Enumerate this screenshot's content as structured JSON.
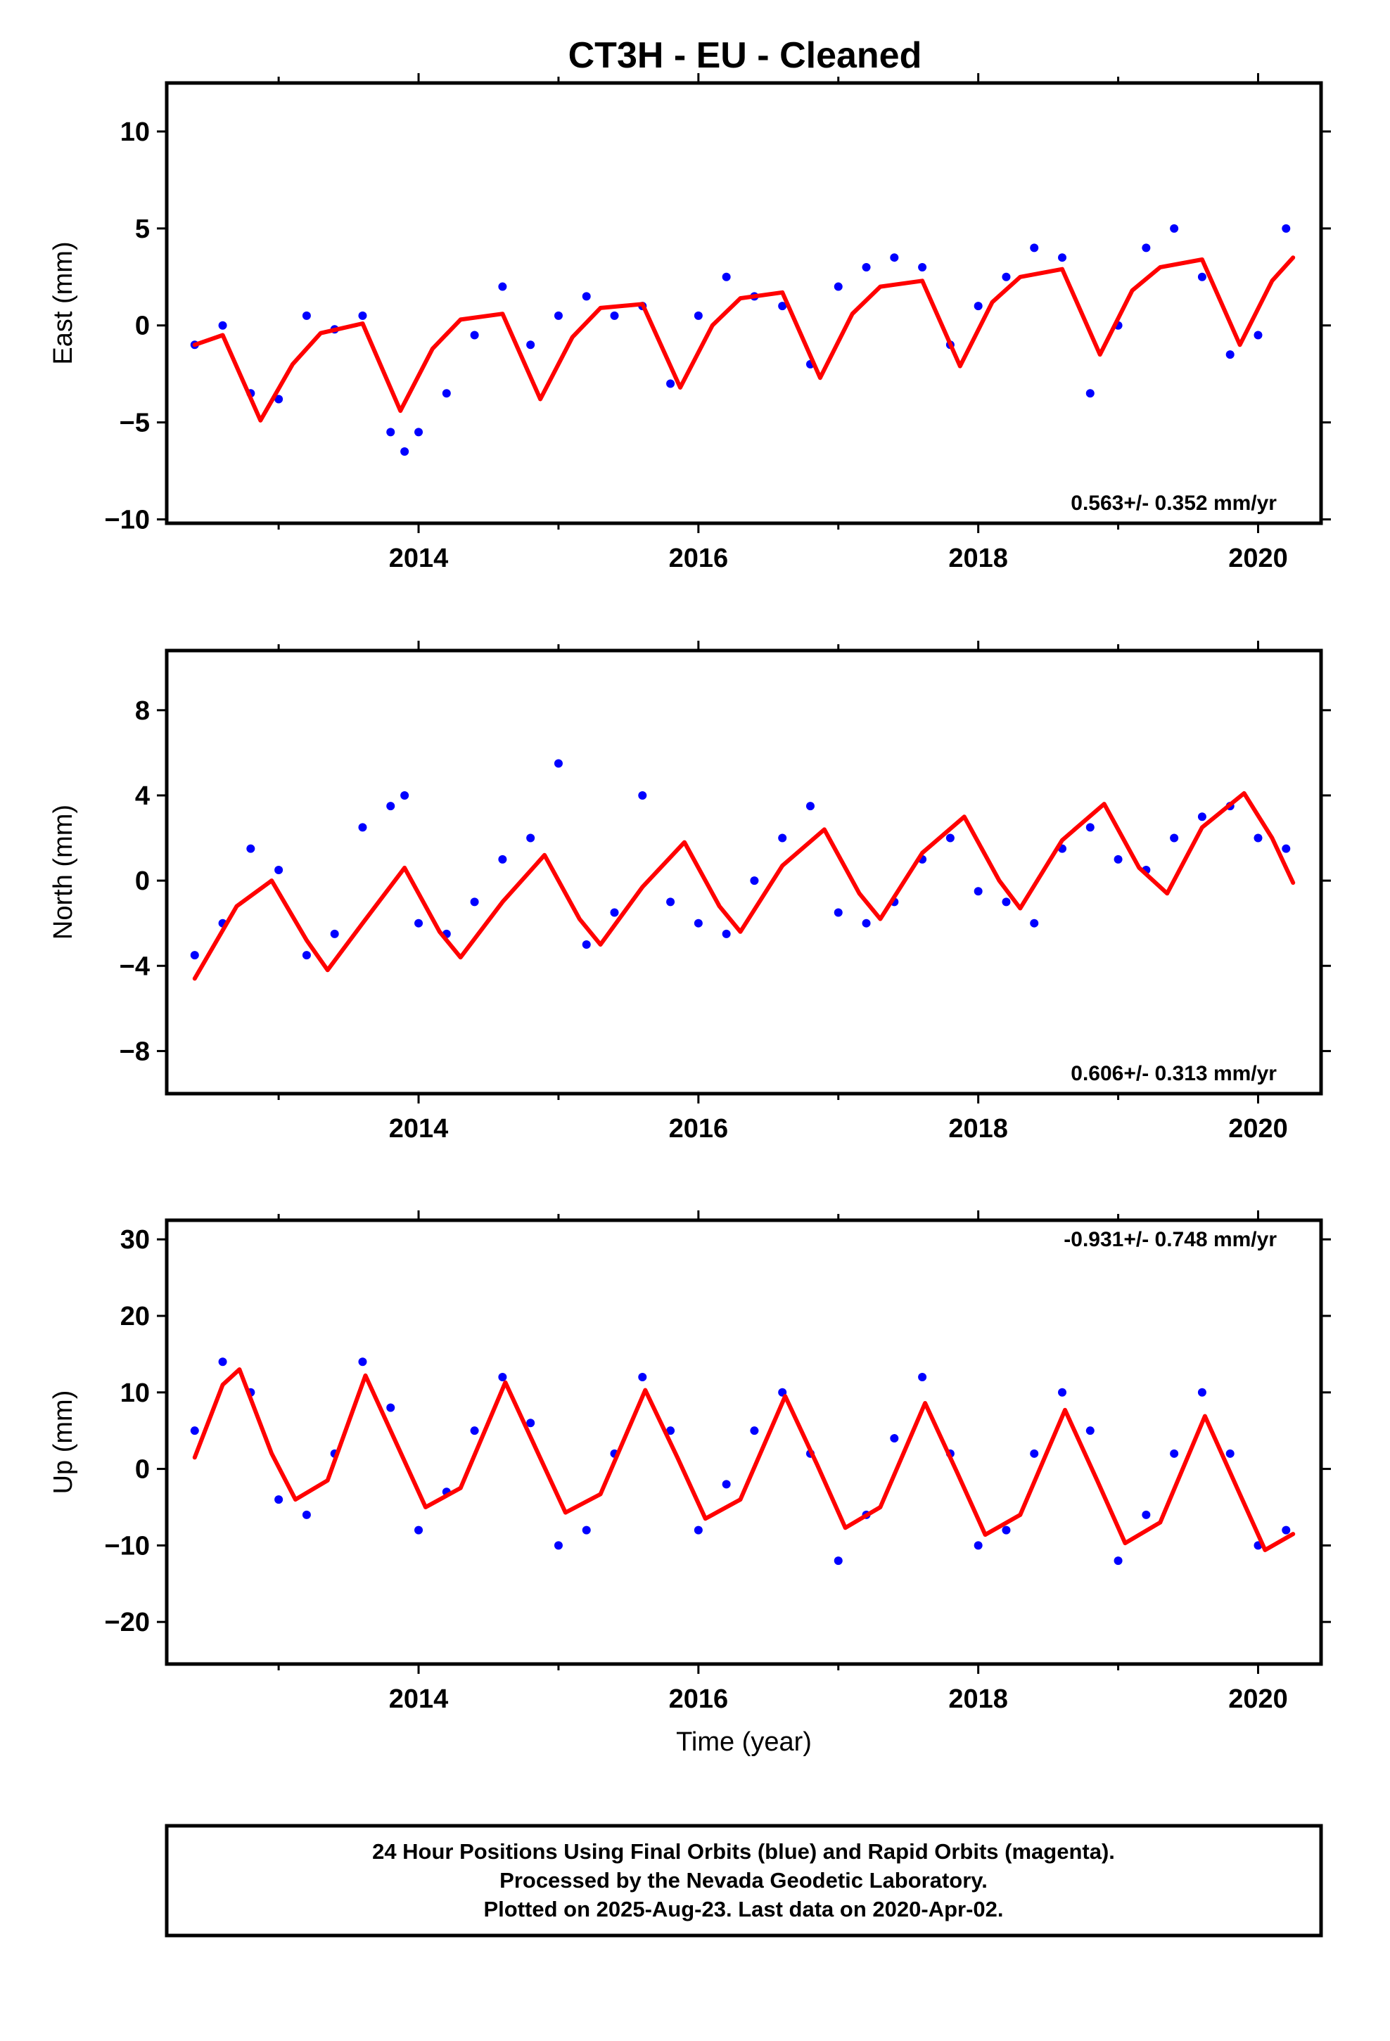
{
  "title": "CT3H  - EU - Cleaned",
  "colors": {
    "points": "#0000ff",
    "fit": "#ff0000",
    "frame": "#000000"
  },
  "footer": {
    "line1": "24 Hour Positions Using Final Orbits (blue) and Rapid Orbits (magenta).",
    "line2": "Processed by the Nevada Geodetic Laboratory.",
    "line3": "Plotted on 2025-Aug-23. Last data on 2020-Apr-02."
  },
  "chart_data": [
    {
      "type": "scatter",
      "title": "",
      "xlabel": "",
      "ylabel": "East (mm)",
      "rate": "0.563+/- 0.352 mm/yr",
      "xlim": [
        2012.2,
        2020.45
      ],
      "ylim": [
        -10.2,
        12.5
      ],
      "x_ticks": [
        2014,
        2016,
        2018,
        2020
      ],
      "y_ticks": [
        -10,
        -5,
        0,
        5,
        10
      ],
      "series": [
        {
          "kind": "points",
          "x": [
            2012.4,
            2012.6,
            2012.8,
            2013.0,
            2013.2,
            2013.4,
            2013.6,
            2013.8,
            2013.9,
            2014.0,
            2014.2,
            2014.4,
            2014.6,
            2014.8,
            2015.0,
            2015.2,
            2015.4,
            2015.6,
            2015.8,
            2016.0,
            2016.2,
            2016.4,
            2016.6,
            2016.8,
            2017.0,
            2017.2,
            2017.4,
            2017.6,
            2017.8,
            2018.0,
            2018.2,
            2018.4,
            2018.6,
            2018.8,
            2019.0,
            2019.2,
            2019.4,
            2019.6,
            2019.8,
            2020.0,
            2020.2
          ],
          "y": [
            -1.0,
            0.0,
            -3.5,
            -3.8,
            0.5,
            -0.2,
            0.5,
            -5.5,
            -6.5,
            -5.5,
            -3.5,
            -0.5,
            2.0,
            -1.0,
            0.5,
            1.5,
            0.5,
            1.0,
            -3.0,
            0.5,
            2.5,
            1.5,
            1.0,
            -2.0,
            2.0,
            3.0,
            3.5,
            3.0,
            -1.0,
            1.0,
            2.5,
            4.0,
            3.5,
            -3.5,
            0.0,
            4.0,
            5.0,
            2.5,
            -1.5,
            -0.5,
            5.0
          ]
        },
        {
          "kind": "fit",
          "x": [
            2012.4,
            2012.6,
            2012.87,
            2013.1,
            2013.3,
            2013.6,
            2013.87,
            2014.1,
            2014.3,
            2014.6,
            2014.87,
            2015.1,
            2015.3,
            2015.6,
            2015.87,
            2016.1,
            2016.3,
            2016.6,
            2016.87,
            2017.1,
            2017.3,
            2017.6,
            2017.87,
            2018.1,
            2018.3,
            2018.6,
            2018.87,
            2019.1,
            2019.3,
            2019.6,
            2019.87,
            2020.1,
            2020.25
          ],
          "y": [
            -1.0,
            -0.5,
            -4.9,
            -2.0,
            -0.4,
            0.1,
            -4.4,
            -1.2,
            0.3,
            0.6,
            -3.8,
            -0.6,
            0.9,
            1.1,
            -3.2,
            0.0,
            1.4,
            1.7,
            -2.7,
            0.6,
            2.0,
            2.3,
            -2.1,
            1.2,
            2.5,
            2.9,
            -1.5,
            1.8,
            3.0,
            3.4,
            -1.0,
            2.3,
            3.5
          ]
        }
      ]
    },
    {
      "type": "scatter",
      "title": "",
      "xlabel": "",
      "ylabel": "North (mm)",
      "rate": "0.606+/- 0.313 mm/yr",
      "xlim": [
        2012.2,
        2020.45
      ],
      "ylim": [
        -10.0,
        10.8
      ],
      "x_ticks": [
        2014,
        2016,
        2018,
        2020
      ],
      "y_ticks": [
        -8,
        -4,
        0,
        4,
        8
      ],
      "series": [
        {
          "kind": "points",
          "x": [
            2012.4,
            2012.6,
            2012.8,
            2013.0,
            2013.2,
            2013.4,
            2013.6,
            2013.8,
            2013.9,
            2014.0,
            2014.2,
            2014.4,
            2014.6,
            2014.8,
            2015.0,
            2015.2,
            2015.4,
            2015.6,
            2015.8,
            2016.0,
            2016.2,
            2016.4,
            2016.6,
            2016.8,
            2017.0,
            2017.2,
            2017.4,
            2017.6,
            2017.8,
            2018.0,
            2018.2,
            2018.4,
            2018.6,
            2018.8,
            2019.0,
            2019.2,
            2019.4,
            2019.6,
            2019.8,
            2020.0,
            2020.2
          ],
          "y": [
            -3.5,
            -2.0,
            1.5,
            0.5,
            -3.5,
            -2.5,
            2.5,
            3.5,
            4.0,
            -2.0,
            -2.5,
            -1.0,
            1.0,
            2.0,
            5.5,
            -3.0,
            -1.5,
            4.0,
            -1.0,
            -2.0,
            -2.5,
            0.0,
            2.0,
            3.5,
            -1.5,
            -2.0,
            -1.0,
            1.0,
            2.0,
            -0.5,
            -1.0,
            -2.0,
            1.5,
            2.5,
            1.0,
            0.5,
            2.0,
            3.0,
            3.5,
            2.0,
            1.5
          ]
        },
        {
          "kind": "fit",
          "x": [
            2012.4,
            2012.7,
            2012.95,
            2013.2,
            2013.35,
            2013.6,
            2013.9,
            2014.15,
            2014.3,
            2014.6,
            2014.9,
            2015.15,
            2015.3,
            2015.6,
            2015.9,
            2016.15,
            2016.3,
            2016.6,
            2016.9,
            2017.15,
            2017.3,
            2017.6,
            2017.9,
            2018.15,
            2018.3,
            2018.6,
            2018.9,
            2019.15,
            2019.35,
            2019.6,
            2019.9,
            2020.1,
            2020.25
          ],
          "y": [
            -4.6,
            -1.2,
            0.0,
            -2.8,
            -4.2,
            -2.0,
            0.6,
            -2.4,
            -3.6,
            -1.0,
            1.2,
            -1.8,
            -3.0,
            -0.3,
            1.8,
            -1.2,
            -2.4,
            0.7,
            2.4,
            -0.6,
            -1.8,
            1.3,
            3.0,
            0.0,
            -1.3,
            1.9,
            3.6,
            0.6,
            -0.6,
            2.5,
            4.1,
            2.0,
            -0.1
          ]
        }
      ]
    },
    {
      "type": "scatter",
      "title": "",
      "xlabel": "Time (year)",
      "ylabel": "Up (mm)",
      "rate": "-0.931+/- 0.748 mm/yr",
      "xlim": [
        2012.2,
        2020.45
      ],
      "ylim": [
        -25.5,
        32.5
      ],
      "x_ticks": [
        2014,
        2016,
        2018,
        2020
      ],
      "y_ticks": [
        -20,
        -10,
        0,
        10,
        20,
        30
      ],
      "series": [
        {
          "kind": "points",
          "x": [
            2012.4,
            2012.6,
            2012.8,
            2013.0,
            2013.2,
            2013.4,
            2013.6,
            2013.8,
            2014.0,
            2014.2,
            2014.4,
            2014.6,
            2014.8,
            2015.0,
            2015.2,
            2015.4,
            2015.6,
            2015.8,
            2016.0,
            2016.2,
            2016.4,
            2016.6,
            2016.8,
            2017.0,
            2017.2,
            2017.4,
            2017.6,
            2017.8,
            2018.0,
            2018.2,
            2018.4,
            2018.6,
            2018.8,
            2019.0,
            2019.2,
            2019.4,
            2019.6,
            2019.8,
            2020.0,
            2020.2
          ],
          "y": [
            5.0,
            14.0,
            10.0,
            -4.0,
            -6.0,
            2.0,
            14.0,
            8.0,
            -8.0,
            -3.0,
            5.0,
            12.0,
            6.0,
            -10.0,
            -8.0,
            2.0,
            12.0,
            5.0,
            -8.0,
            -2.0,
            5.0,
            10.0,
            2.0,
            -12.0,
            -6.0,
            4.0,
            12.0,
            2.0,
            -10.0,
            -8.0,
            2.0,
            10.0,
            5.0,
            -12.0,
            -6.0,
            2.0,
            10.0,
            2.0,
            -10.0,
            -8.0
          ]
        },
        {
          "kind": "fit",
          "x": [
            2012.4,
            2012.6,
            2012.72,
            2012.95,
            2013.12,
            2013.35,
            2013.62,
            2013.85,
            2014.05,
            2014.3,
            2014.62,
            2014.85,
            2015.05,
            2015.3,
            2015.62,
            2015.85,
            2016.05,
            2016.3,
            2016.62,
            2016.85,
            2017.05,
            2017.3,
            2017.62,
            2017.85,
            2018.05,
            2018.3,
            2018.62,
            2018.85,
            2019.05,
            2019.3,
            2019.62,
            2019.85,
            2020.05,
            2020.25
          ],
          "y": [
            1.5,
            11.0,
            13.0,
            2.0,
            -4.0,
            -1.5,
            12.2,
            3.0,
            -5.0,
            -2.5,
            11.3,
            2.2,
            -5.7,
            -3.3,
            10.3,
            1.5,
            -6.5,
            -4.0,
            9.5,
            0.5,
            -7.7,
            -5.0,
            8.6,
            -0.5,
            -8.6,
            -6.0,
            7.7,
            -1.5,
            -9.7,
            -7.0,
            6.9,
            -2.5,
            -10.6,
            -8.5
          ]
        }
      ]
    }
  ]
}
